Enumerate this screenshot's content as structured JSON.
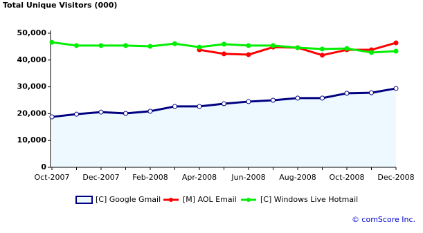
{
  "chart_data": {
    "type": "line",
    "title": "Total Unique Visitors (000)",
    "categories": [
      "Oct-2007",
      null,
      "Dec-2007",
      null,
      "Feb-2008",
      null,
      "Apr-2008",
      null,
      "Jun-2008",
      null,
      "Aug-2008",
      null,
      "Oct-2008",
      null,
      "Dec-2008"
    ],
    "series": [
      {
        "name": "[C] Google Gmail",
        "color": "#000080",
        "fill_color": "#eef8ff",
        "area": true,
        "marker_fill": "#ffffff",
        "values": [
          18800,
          19800,
          20600,
          20100,
          20900,
          22700,
          22700,
          23700,
          24500,
          25000,
          25800,
          25800,
          27600,
          27800,
          29400
        ]
      },
      {
        "name": "[M] AOL Email",
        "color": "#ff0000",
        "area": false,
        "marker_fill": "#ff0000",
        "values": [
          null,
          null,
          null,
          null,
          null,
          null,
          43800,
          42300,
          42000,
          44800,
          44600,
          41800,
          43800,
          43800,
          46400
        ]
      },
      {
        "name": "[C] Windows Live Hotmail",
        "color": "#00ee00",
        "area": false,
        "marker_fill": "#00ee00",
        "values": [
          46600,
          45400,
          45400,
          45400,
          45100,
          46100,
          44800,
          45900,
          45400,
          45400,
          44600,
          44100,
          44300,
          42800,
          43300
        ]
      }
    ],
    "ylim": [
      0,
      50000
    ],
    "yticks": [
      0,
      {
        "value": 10000,
        "label": "10,000"
      },
      {
        "value": 20000,
        "label": "20,000"
      },
      {
        "value": 30000,
        "label": "30,000"
      },
      {
        "value": 40000,
        "label": "40,000"
      },
      {
        "value": 50000,
        "label": "50,000"
      }
    ],
    "legend": "bottom",
    "copyright": "© comScore Inc."
  }
}
